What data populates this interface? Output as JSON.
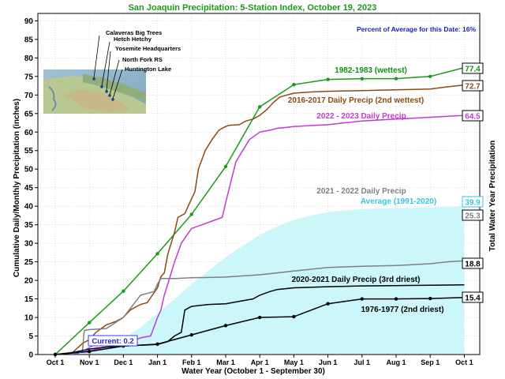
{
  "chart_data": {
    "type": "line",
    "title": "San Joaquin Precipitation: 5-Station Index, October 19, 2023",
    "xlabel": "Water Year (October 1 - September 30)",
    "ylabel": "Cumulative Daily/Monthly Precipitation (inches)",
    "y2label": "Total Water Year Precipitation",
    "ylim": [
      0,
      92
    ],
    "yticks": [
      0,
      5,
      10,
      15,
      20,
      25,
      30,
      35,
      40,
      45,
      50,
      55,
      60,
      65,
      70,
      75,
      80,
      85,
      90
    ],
    "xlim": [
      0,
      12.4
    ],
    "xticks": [
      {
        "label": "Oct 1",
        "x": 0
      },
      {
        "label": "Nov 1",
        "x": 1
      },
      {
        "label": "Dec 1",
        "x": 2
      },
      {
        "label": "Jan 1",
        "x": 3
      },
      {
        "label": "Feb 1",
        "x": 4
      },
      {
        "label": "Mar 1",
        "x": 5
      },
      {
        "label": "Apr 1",
        "x": 6
      },
      {
        "label": "May 1",
        "x": 7
      },
      {
        "label": "Jun 1",
        "x": 8
      },
      {
        "label": "Jul 1",
        "x": 9
      },
      {
        "label": "Aug 1",
        "x": 10
      },
      {
        "label": "Sep 1",
        "x": 11
      },
      {
        "label": "Oct 1",
        "x": 12
      }
    ],
    "percent_of_average": "Percent of Average for this Date: 16%",
    "current": {
      "label": "Current: 0.2",
      "value": 0.2
    },
    "map_stations": [
      "Calaveras Big Trees",
      "Hetch Hetchy",
      "Yosemite Headquarters",
      "North Fork RS",
      "Huntington Lake"
    ],
    "series": [
      {
        "name": "Average (1991-2020)",
        "kind": "area",
        "color": "#ccf7fa",
        "label_color": "#33c8dd",
        "total": "39.9",
        "x": [
          0,
          0.5,
          1,
          1.5,
          2,
          2.5,
          3,
          3.5,
          4,
          4.5,
          5,
          5.5,
          6,
          6.5,
          7,
          7.5,
          8,
          8.5,
          9,
          9.5,
          10,
          10.5,
          11,
          11.5,
          12
        ],
        "values": [
          0,
          0.5,
          1.2,
          2.3,
          4.3,
          7.3,
          11.1,
          15,
          19,
          22.6,
          26.3,
          29.3,
          32.3,
          34.5,
          36.3,
          37.5,
          38.4,
          38.9,
          39.2,
          39.4,
          39.5,
          39.6,
          39.7,
          39.8,
          39.9
        ]
      },
      {
        "name": "1982-1983 (wettest)",
        "kind": "line",
        "color": "#1a9a1a",
        "label_color": "#109010",
        "total": "77.4",
        "markers": true,
        "x": [
          0,
          1,
          2,
          3,
          4,
          5,
          6,
          7,
          8,
          9,
          10,
          11,
          12
        ],
        "values": [
          0,
          8.6,
          17.1,
          27.2,
          37.8,
          50.7,
          66.8,
          72.8,
          74.2,
          74.4,
          74.4,
          75,
          77.4
        ]
      },
      {
        "name": "2016-2017 Daily Precip (2nd wettest)",
        "kind": "line",
        "color": "#8b4a14",
        "label_color": "#8b4a14",
        "total": "72.7",
        "x": [
          0,
          0.5,
          0.8,
          1,
          1.2,
          1.5,
          1.8,
          2,
          2.2,
          2.5,
          2.7,
          3,
          3.1,
          3.2,
          3.3,
          3.5,
          3.6,
          3.8,
          4,
          4.1,
          4.2,
          4.4,
          4.6,
          4.8,
          5,
          5.1,
          5.4,
          5.6,
          5.8,
          6,
          6.2,
          6.4,
          6.6,
          7,
          7.5,
          8,
          9,
          10,
          11,
          11.5,
          12
        ],
        "values": [
          0,
          0.5,
          3,
          4,
          6,
          8,
          9,
          10,
          12,
          13.5,
          14,
          18,
          21,
          22,
          27,
          33,
          37,
          38,
          42,
          44,
          50,
          55,
          58,
          60.5,
          61.5,
          61.8,
          62,
          63,
          63.5,
          64.5,
          66,
          68,
          69.5,
          70.5,
          70.8,
          71,
          71.2,
          71.4,
          71.6,
          72.2,
          72.7
        ]
      },
      {
        "name": "2022 - 2023 Daily Precip",
        "kind": "line",
        "color": "#c23ad1",
        "label_color": "#c23ad1",
        "total": "64.5",
        "x": [
          0,
          0.5,
          1,
          1.5,
          2,
          2.5,
          2.8,
          3,
          3.1,
          3.2,
          3.3,
          3.5,
          3.7,
          4,
          4.3,
          4.6,
          4.9,
          5,
          5.3,
          5.5,
          5.7,
          6,
          6.3,
          6.5,
          7,
          8,
          9,
          10,
          11,
          12
        ],
        "values": [
          0,
          0.5,
          1,
          2,
          2.5,
          4.5,
          5,
          10,
          12,
          16,
          19,
          25,
          30,
          34,
          35,
          36,
          37,
          41,
          52,
          55,
          58,
          60,
          60.5,
          61,
          61.5,
          62,
          63,
          63.5,
          64,
          64.5
        ]
      },
      {
        "name": "2021 - 2022 Daily Precip",
        "kind": "line",
        "color": "#7f7f7f",
        "label_color": "#7f7f7f",
        "total": "25.3",
        "x": [
          0,
          0.4,
          0.8,
          0.85,
          1,
          1.5,
          2,
          2.5,
          2.9,
          3,
          3.1,
          3.5,
          4,
          5,
          6,
          7,
          8,
          9,
          10,
          11,
          11.5,
          12
        ],
        "values": [
          0,
          0.5,
          1,
          6.5,
          6.7,
          7,
          10,
          16,
          17,
          19,
          20.5,
          20.5,
          20.7,
          20.9,
          21.5,
          22.5,
          23.5,
          23.8,
          24,
          24.5,
          25,
          25.3
        ]
      },
      {
        "name": "2020-2021 Daily Precip (3rd driest)",
        "kind": "line",
        "color": "#000000",
        "label_color": "#000000",
        "total": "18.8",
        "x": [
          0,
          0.5,
          1,
          1.5,
          2,
          2.5,
          3,
          3.3,
          3.5,
          3.7,
          3.8,
          4,
          4.5,
          5,
          5.5,
          5.8,
          6,
          6.3,
          6.5,
          7,
          8,
          9,
          10,
          11,
          12
        ],
        "values": [
          0,
          0.5,
          1.5,
          2,
          2.3,
          2.5,
          2.7,
          3.5,
          5,
          6,
          12,
          13,
          13.5,
          13.7,
          14.5,
          15,
          16,
          17,
          17.5,
          18,
          18.3,
          18.5,
          18.6,
          18.7,
          18.8
        ]
      },
      {
        "name": "1976-1977 (2nd driest)",
        "kind": "line",
        "color": "#000000",
        "label_color": "#000000",
        "total": "15.4",
        "markers": true,
        "x": [
          0,
          1,
          2,
          3,
          4,
          5,
          6,
          7,
          8,
          9,
          10,
          11,
          12
        ],
        "values": [
          0,
          0.8,
          2.3,
          2.8,
          5.3,
          7.8,
          10,
          10.2,
          13.7,
          15,
          15,
          15.1,
          15.4
        ]
      }
    ]
  }
}
